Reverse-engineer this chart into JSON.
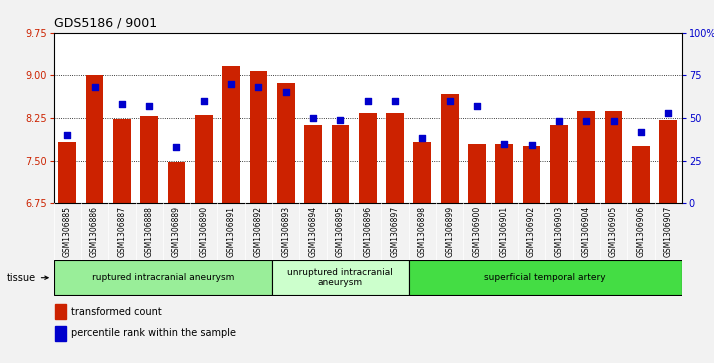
{
  "title": "GDS5186 / 9001",
  "samples": [
    "GSM1306885",
    "GSM1306886",
    "GSM1306887",
    "GSM1306888",
    "GSM1306889",
    "GSM1306890",
    "GSM1306891",
    "GSM1306892",
    "GSM1306893",
    "GSM1306894",
    "GSM1306895",
    "GSM1306896",
    "GSM1306897",
    "GSM1306898",
    "GSM1306899",
    "GSM1306900",
    "GSM1306901",
    "GSM1306902",
    "GSM1306903",
    "GSM1306904",
    "GSM1306905",
    "GSM1306906",
    "GSM1306907"
  ],
  "bar_values": [
    7.82,
    9.01,
    8.23,
    8.28,
    7.47,
    8.3,
    9.17,
    9.07,
    8.87,
    8.12,
    8.12,
    8.33,
    8.33,
    7.82,
    8.67,
    7.8,
    7.8,
    7.75,
    8.12,
    8.37,
    8.37,
    7.75,
    8.22
  ],
  "percentile_values": [
    40,
    68,
    58,
    57,
    33,
    60,
    70,
    68,
    65,
    50,
    49,
    60,
    60,
    38,
    60,
    57,
    35,
    34,
    48,
    48,
    48,
    42,
    53
  ],
  "ylim_left": [
    6.75,
    9.75
  ],
  "ylim_right": [
    0,
    100
  ],
  "yticks_left": [
    6.75,
    7.5,
    8.25,
    9.0,
    9.75
  ],
  "yticks_right": [
    0,
    25,
    50,
    75,
    100
  ],
  "bar_color": "#CC2200",
  "dot_color": "#0000CC",
  "fig_bg": "#F2F2F2",
  "plot_bg": "#FFFFFF",
  "tick_area_bg": "#D8D8D8",
  "groups": [
    {
      "label": "ruptured intracranial aneurysm",
      "start": 0,
      "end": 7,
      "color": "#99EE99"
    },
    {
      "label": "unruptured intracranial\naneurysm",
      "start": 8,
      "end": 12,
      "color": "#CCFFCC"
    },
    {
      "label": "superficial temporal artery",
      "start": 13,
      "end": 22,
      "color": "#44DD44"
    }
  ],
  "tissue_label": "tissue",
  "legend_bar_label": "transformed count",
  "legend_dot_label": "percentile rank within the sample"
}
